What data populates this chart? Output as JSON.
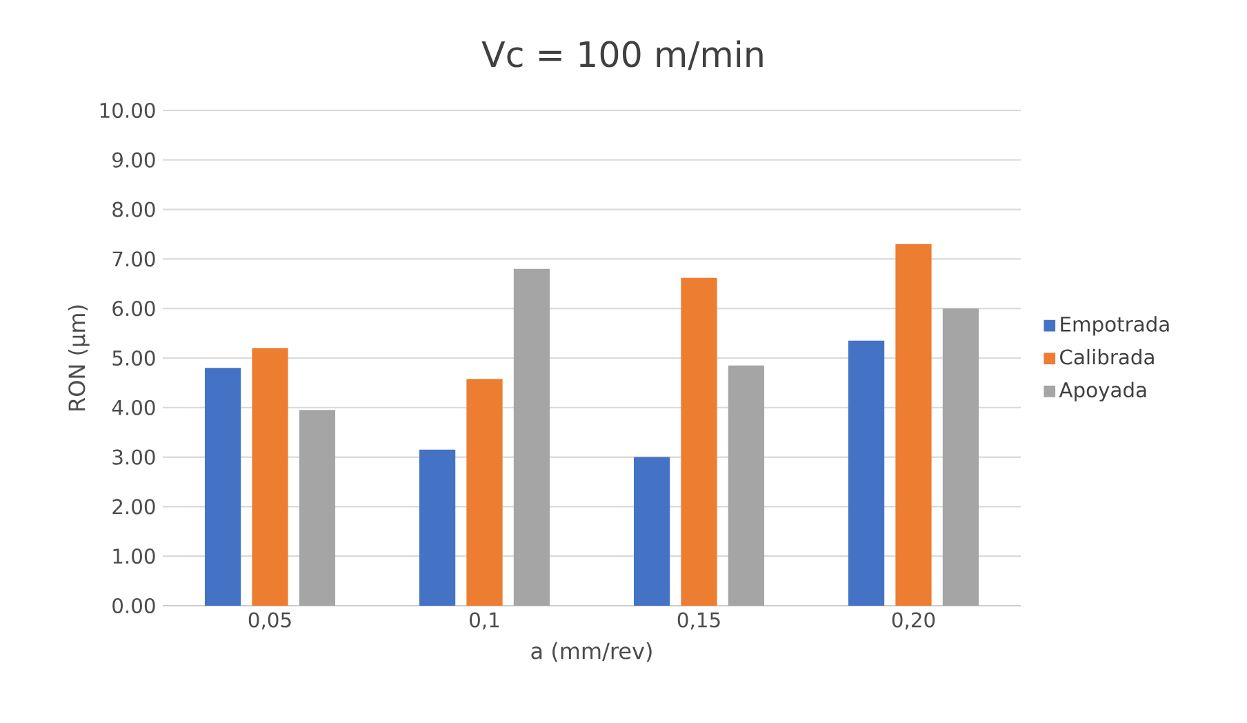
{
  "chart_data": {
    "type": "bar",
    "title": "Vc = 100 m/min",
    "xlabel": "a (mm/rev)",
    "ylabel": "RON (µm)",
    "categories": [
      "0,05",
      "0,1",
      "0,15",
      "0,20"
    ],
    "series": [
      {
        "name": "Empotrada",
        "color": "#4472c4",
        "values": [
          4.8,
          3.15,
          3.0,
          5.35
        ]
      },
      {
        "name": "Calibrada",
        "color": "#ed7d31",
        "values": [
          5.2,
          4.58,
          6.62,
          7.3
        ]
      },
      {
        "name": "Apoyada",
        "color": "#a5a5a5",
        "values": [
          3.95,
          6.8,
          4.85,
          6.0
        ]
      }
    ],
    "ylim": [
      0,
      10
    ],
    "yticks": [
      {
        "value": 0,
        "label": "0.00"
      },
      {
        "value": 1,
        "label": "1.00"
      },
      {
        "value": 2,
        "label": "2.00"
      },
      {
        "value": 3,
        "label": "3.00"
      },
      {
        "value": 4,
        "label": "4.00"
      },
      {
        "value": 5,
        "label": "5.00"
      },
      {
        "value": 6,
        "label": "6.00"
      },
      {
        "value": 7,
        "label": "7.00"
      },
      {
        "value": 8,
        "label": "8.00"
      },
      {
        "value": 9,
        "label": "9.00"
      },
      {
        "value": 10,
        "label": "10.00"
      }
    ],
    "grid": "y",
    "legend": "right"
  }
}
